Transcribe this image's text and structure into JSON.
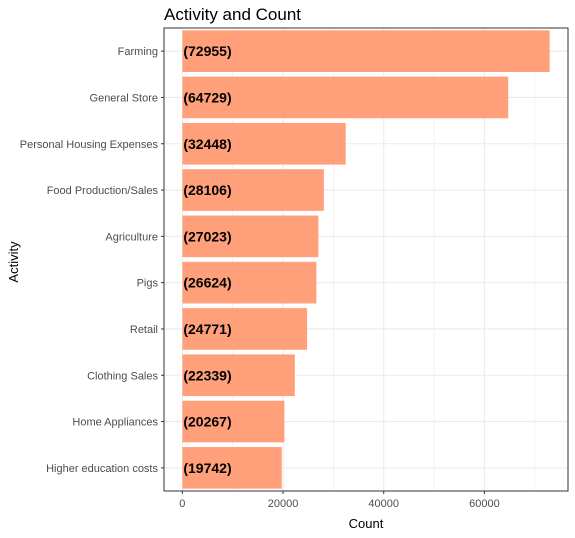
{
  "chart_data": {
    "type": "bar",
    "orientation": "horizontal",
    "title": "Activity and Count",
    "xlabel": "Count",
    "ylabel": "Activity",
    "categories": [
      "Farming",
      "General Store",
      "Personal Housing Expenses",
      "Food Production/Sales",
      "Agriculture",
      "Pigs",
      "Retail",
      "Clothing Sales",
      "Home Appliances",
      "Higher education costs"
    ],
    "values": [
      72955,
      64729,
      32448,
      28106,
      27023,
      26624,
      24771,
      22339,
      20267,
      19742
    ],
    "data_labels": [
      "(72955)",
      "(64729)",
      "(32448)",
      "(28106)",
      "(27023)",
      "(26624)",
      "(24771)",
      "(22339)",
      "(20267)",
      "(19742)"
    ],
    "xlim": [
      -3648,
      76603
    ],
    "xticks": [
      0,
      20000,
      40000,
      60000
    ],
    "xtick_labels": [
      "0",
      "20000",
      "40000",
      "60000"
    ],
    "grid": true,
    "legend": "none",
    "colors": {
      "bar": "#ffa07a",
      "panel_border": "#333333",
      "grid": "#ebebeb",
      "background": "#ffffff"
    }
  }
}
